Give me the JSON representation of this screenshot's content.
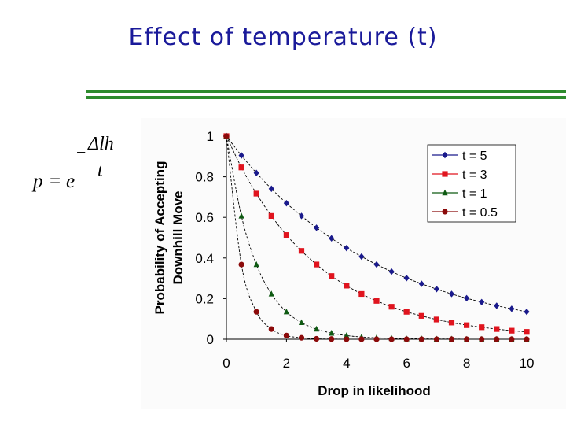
{
  "slide": {
    "title": "Effect of temperature (t)"
  },
  "formula": {
    "p": "p",
    "equals": "=",
    "e": "e",
    "minus": "−",
    "numerator": "Δlh",
    "denominator": "t"
  },
  "colors": {
    "title": "#1a1a9a",
    "rule": "#2e8b2e",
    "t5": "#1a1a8c",
    "t3": "#e0141e",
    "t1": "#0e5a12",
    "t05": "#8b0a0a"
  },
  "chart_data": {
    "type": "line",
    "title": "",
    "xlabel": "Drop in likelihood",
    "ylabel_line1": "Probability of Accepting",
    "ylabel_line2": "Downhill Move",
    "xlim": [
      0,
      10
    ],
    "ylim": [
      0,
      1
    ],
    "xticks": [
      "0",
      "2",
      "4",
      "6",
      "8",
      "10"
    ],
    "yticks": [
      "0",
      "0.2",
      "0.4",
      "0.6",
      "0.8",
      "1"
    ],
    "x": [
      0,
      0.5,
      1,
      1.5,
      2,
      2.5,
      3,
      3.5,
      4,
      4.5,
      5,
      5.5,
      6,
      6.5,
      7,
      7.5,
      8,
      8.5,
      9,
      9.5,
      10
    ],
    "legend_position": "top-right",
    "series": [
      {
        "name": "t = 5",
        "marker": "diamond",
        "color": "#1a1a8c",
        "values": [
          1,
          0.905,
          0.819,
          0.741,
          0.67,
          0.607,
          0.549,
          0.497,
          0.449,
          0.407,
          0.368,
          0.333,
          0.301,
          0.273,
          0.247,
          0.223,
          0.202,
          0.183,
          0.165,
          0.15,
          0.135
        ]
      },
      {
        "name": "t = 3",
        "marker": "square",
        "color": "#e0141e",
        "values": [
          1,
          0.846,
          0.717,
          0.607,
          0.513,
          0.435,
          0.368,
          0.311,
          0.264,
          0.223,
          0.189,
          0.16,
          0.135,
          0.115,
          0.097,
          0.082,
          0.069,
          0.059,
          0.05,
          0.042,
          0.036
        ]
      },
      {
        "name": "t = 1",
        "marker": "triangle",
        "color": "#0e5a12",
        "values": [
          1,
          0.607,
          0.368,
          0.223,
          0.135,
          0.082,
          0.05,
          0.03,
          0.018,
          0.011,
          0.007,
          0.004,
          0.002,
          0.002,
          0.001,
          0.001,
          0.0,
          0.0,
          0.0,
          0.0,
          0.0
        ]
      },
      {
        "name": "t = 0.5",
        "marker": "circle",
        "color": "#8b0a0a",
        "values": [
          1,
          0.368,
          0.135,
          0.05,
          0.018,
          0.007,
          0.002,
          0.001,
          0.0,
          0.0,
          0.0,
          0.0,
          0.0,
          0.0,
          0.0,
          0.0,
          0.0,
          0.0,
          0.0,
          0.0,
          0.0
        ]
      }
    ]
  }
}
